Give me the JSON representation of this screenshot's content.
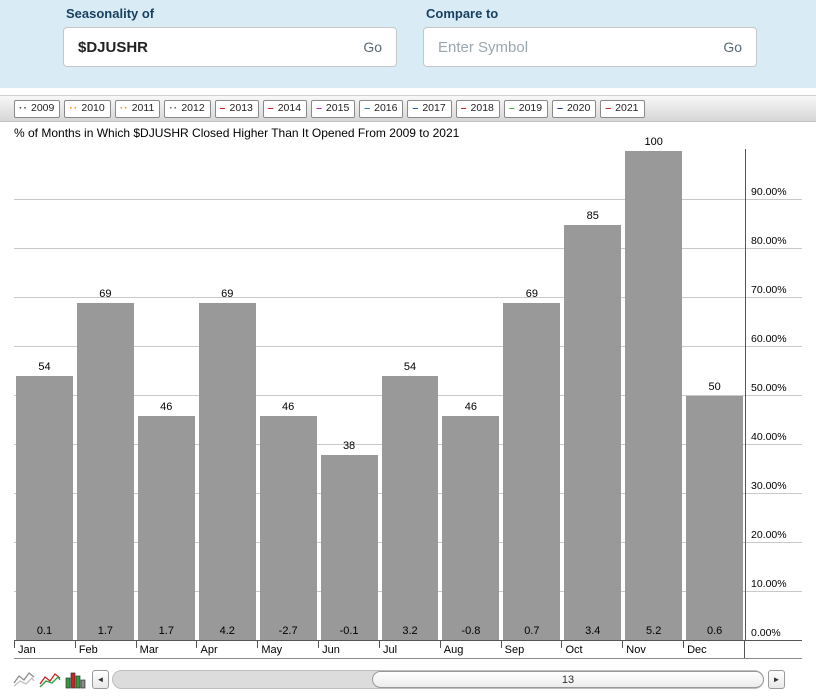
{
  "header": {
    "seasonality_label": "Seasonality of",
    "symbol_value": "$DJUSHR",
    "seasonality_go": "Go",
    "compare_label": "Compare to",
    "compare_placeholder": "Enter Symbol",
    "compare_go": "Go"
  },
  "legend": {
    "years": [
      {
        "label": "2009",
        "marker": "··",
        "color": "#444444"
      },
      {
        "label": "2010",
        "marker": "··",
        "color": "#ff8800"
      },
      {
        "label": "2011",
        "marker": "··",
        "color": "#ff8800"
      },
      {
        "label": "2012",
        "marker": "··",
        "color": "#666666"
      },
      {
        "label": "2013",
        "marker": "–",
        "color": "#cc2222"
      },
      {
        "label": "2014",
        "marker": "–",
        "color": "#cc2222"
      },
      {
        "label": "2015",
        "marker": "–",
        "color": "#bb22bb"
      },
      {
        "label": "2016",
        "marker": "–",
        "color": "#2288bb"
      },
      {
        "label": "2017",
        "marker": "–",
        "color": "#2255cc"
      },
      {
        "label": "2018",
        "marker": "–",
        "color": "#cc2222"
      },
      {
        "label": "2019",
        "marker": "–",
        "color": "#44bb44"
      },
      {
        "label": "2020",
        "marker": "–",
        "color": "#223399"
      },
      {
        "label": "2021",
        "marker": "–",
        "color": "#cc2222"
      }
    ]
  },
  "chart_data": {
    "type": "bar",
    "title": "% of Months in Which $DJUSHR Closed Higher Than It Opened From 2009 to 2021",
    "categories": [
      "Jan",
      "Feb",
      "Mar",
      "Apr",
      "May",
      "Jun",
      "Jul",
      "Aug",
      "Sep",
      "Oct",
      "Nov",
      "Dec"
    ],
    "values": [
      54,
      69,
      46,
      69,
      46,
      38,
      54,
      46,
      69,
      85,
      100,
      50
    ],
    "bar_bottom_labels": [
      "0.1",
      "1.7",
      "1.7",
      "4.2",
      "-2.7",
      "-0.1",
      "3.2",
      "-0.8",
      "0.7",
      "3.4",
      "5.2",
      "0.6"
    ],
    "y_ticks": [
      {
        "value": 90,
        "label": "90.00%"
      },
      {
        "value": 80,
        "label": "80.00%"
      },
      {
        "value": 70,
        "label": "70.00%"
      },
      {
        "value": 60,
        "label": "60.00%"
      },
      {
        "value": 50,
        "label": "50.00%"
      },
      {
        "value": 40,
        "label": "40.00%"
      },
      {
        "value": 30,
        "label": "30.00%"
      },
      {
        "value": 20,
        "label": "20.00%"
      },
      {
        "value": 10,
        "label": "10.00%"
      },
      {
        "value": 0,
        "label": "0.00%"
      }
    ],
    "ylim": [
      0,
      100
    ],
    "xlabel": "",
    "ylabel": "",
    "grid": "horizontal",
    "legend_position": "top",
    "y_axis_side": "right",
    "bar_color": "#999999"
  },
  "toolbar": {
    "icons": [
      "line-chart-icon",
      "compare-chart-icon",
      "histogram-icon"
    ],
    "left_arrow": "◄",
    "right_arrow": "►",
    "scroll_value": "13"
  }
}
